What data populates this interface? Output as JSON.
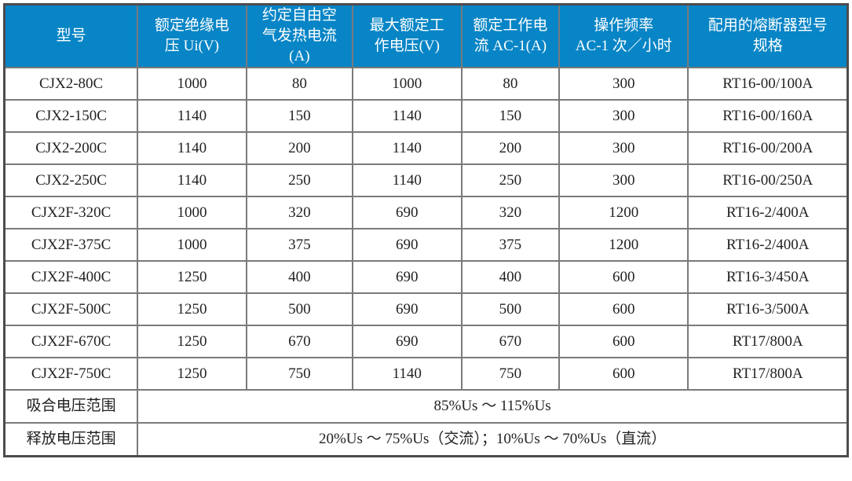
{
  "colors": {
    "header_bg": "#0885c6",
    "header_text": "#ffffff",
    "body_text": "#222222",
    "grid_border": "#7a7a7a",
    "outer_border": "#4c4c4c"
  },
  "table": {
    "columns": [
      "型号",
      "额定绝缘电\n压 Ui(V)",
      "约定自由空\n气发热电流\n(A)",
      "最大额定工\n作电压(V)",
      "额定工作电\n流 AC-1(A)",
      "操作频率\nAC-1 次／小时",
      "配用的熔断器型号\n规格"
    ],
    "rows": [
      {
        "model": "CJX2-80C",
        "values": [
          "1000",
          "80",
          "1000",
          "80",
          "300",
          "RT16-00/100A"
        ]
      },
      {
        "model": "CJX2-150C",
        "values": [
          "1140",
          "150",
          "1140",
          "150",
          "300",
          "RT16-00/160A"
        ]
      },
      {
        "model": "CJX2-200C",
        "values": [
          "1140",
          "200",
          "1140",
          "200",
          "300",
          "RT16-00/200A"
        ]
      },
      {
        "model": "CJX2-250C",
        "values": [
          "1140",
          "250",
          "1140",
          "250",
          "300",
          "RT16-00/250A"
        ]
      },
      {
        "model": "CJX2F-320C",
        "values": [
          "1000",
          "320",
          "690",
          "320",
          "1200",
          "RT16-2/400A"
        ]
      },
      {
        "model": "CJX2F-375C",
        "values": [
          "1000",
          "375",
          "690",
          "375",
          "1200",
          "RT16-2/400A"
        ]
      },
      {
        "model": "CJX2F-400C",
        "values": [
          "1250",
          "400",
          "690",
          "400",
          "600",
          "RT16-3/450A"
        ]
      },
      {
        "model": "CJX2F-500C",
        "values": [
          "1250",
          "500",
          "690",
          "500",
          "600",
          "RT16-3/500A"
        ]
      },
      {
        "model": "CJX2F-670C",
        "values": [
          "1250",
          "670",
          "690",
          "670",
          "600",
          "RT17/800A"
        ]
      },
      {
        "model": "CJX2F-750C",
        "values": [
          "1250",
          "750",
          "1140",
          "750",
          "600",
          "RT17/800A"
        ]
      }
    ],
    "footer_rows": [
      {
        "label": "吸合电压范围",
        "value": "85%Us ～ 115%Us"
      },
      {
        "label": "释放电压范围",
        "value": "20%Us ～ 75%Us（交流）；10%Us ～ 70%Us（直流）"
      }
    ]
  }
}
